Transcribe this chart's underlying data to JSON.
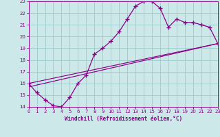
{
  "xlabel": "Windchill (Refroidissement éolien,°C)",
  "bg_color": "#cce8e8",
  "grid_color": "#99cccc",
  "line_color": "#880088",
  "xlim": [
    0,
    23
  ],
  "ylim": [
    14,
    23
  ],
  "yticks": [
    14,
    15,
    16,
    17,
    18,
    19,
    20,
    21,
    22,
    23
  ],
  "xticks": [
    0,
    1,
    2,
    3,
    4,
    5,
    6,
    7,
    8,
    9,
    10,
    11,
    12,
    13,
    14,
    15,
    16,
    17,
    18,
    19,
    20,
    21,
    22,
    23
  ],
  "curve_x": [
    0,
    1,
    2,
    3,
    4,
    5,
    6,
    7,
    8,
    9,
    10,
    11,
    12,
    13,
    14,
    15,
    16,
    17,
    18,
    19,
    20,
    21,
    22,
    23
  ],
  "curve_y": [
    16.0,
    15.2,
    14.6,
    14.1,
    14.0,
    14.8,
    16.0,
    16.7,
    18.5,
    19.0,
    19.6,
    20.4,
    21.5,
    22.6,
    23.0,
    23.0,
    22.4,
    20.8,
    21.5,
    21.2,
    21.2,
    21.0,
    20.8,
    19.4
  ],
  "line2_x": [
    0,
    23
  ],
  "line2_y": [
    16.0,
    19.4
  ],
  "line3_x": [
    0,
    23
  ],
  "line3_y": [
    15.7,
    19.4
  ]
}
